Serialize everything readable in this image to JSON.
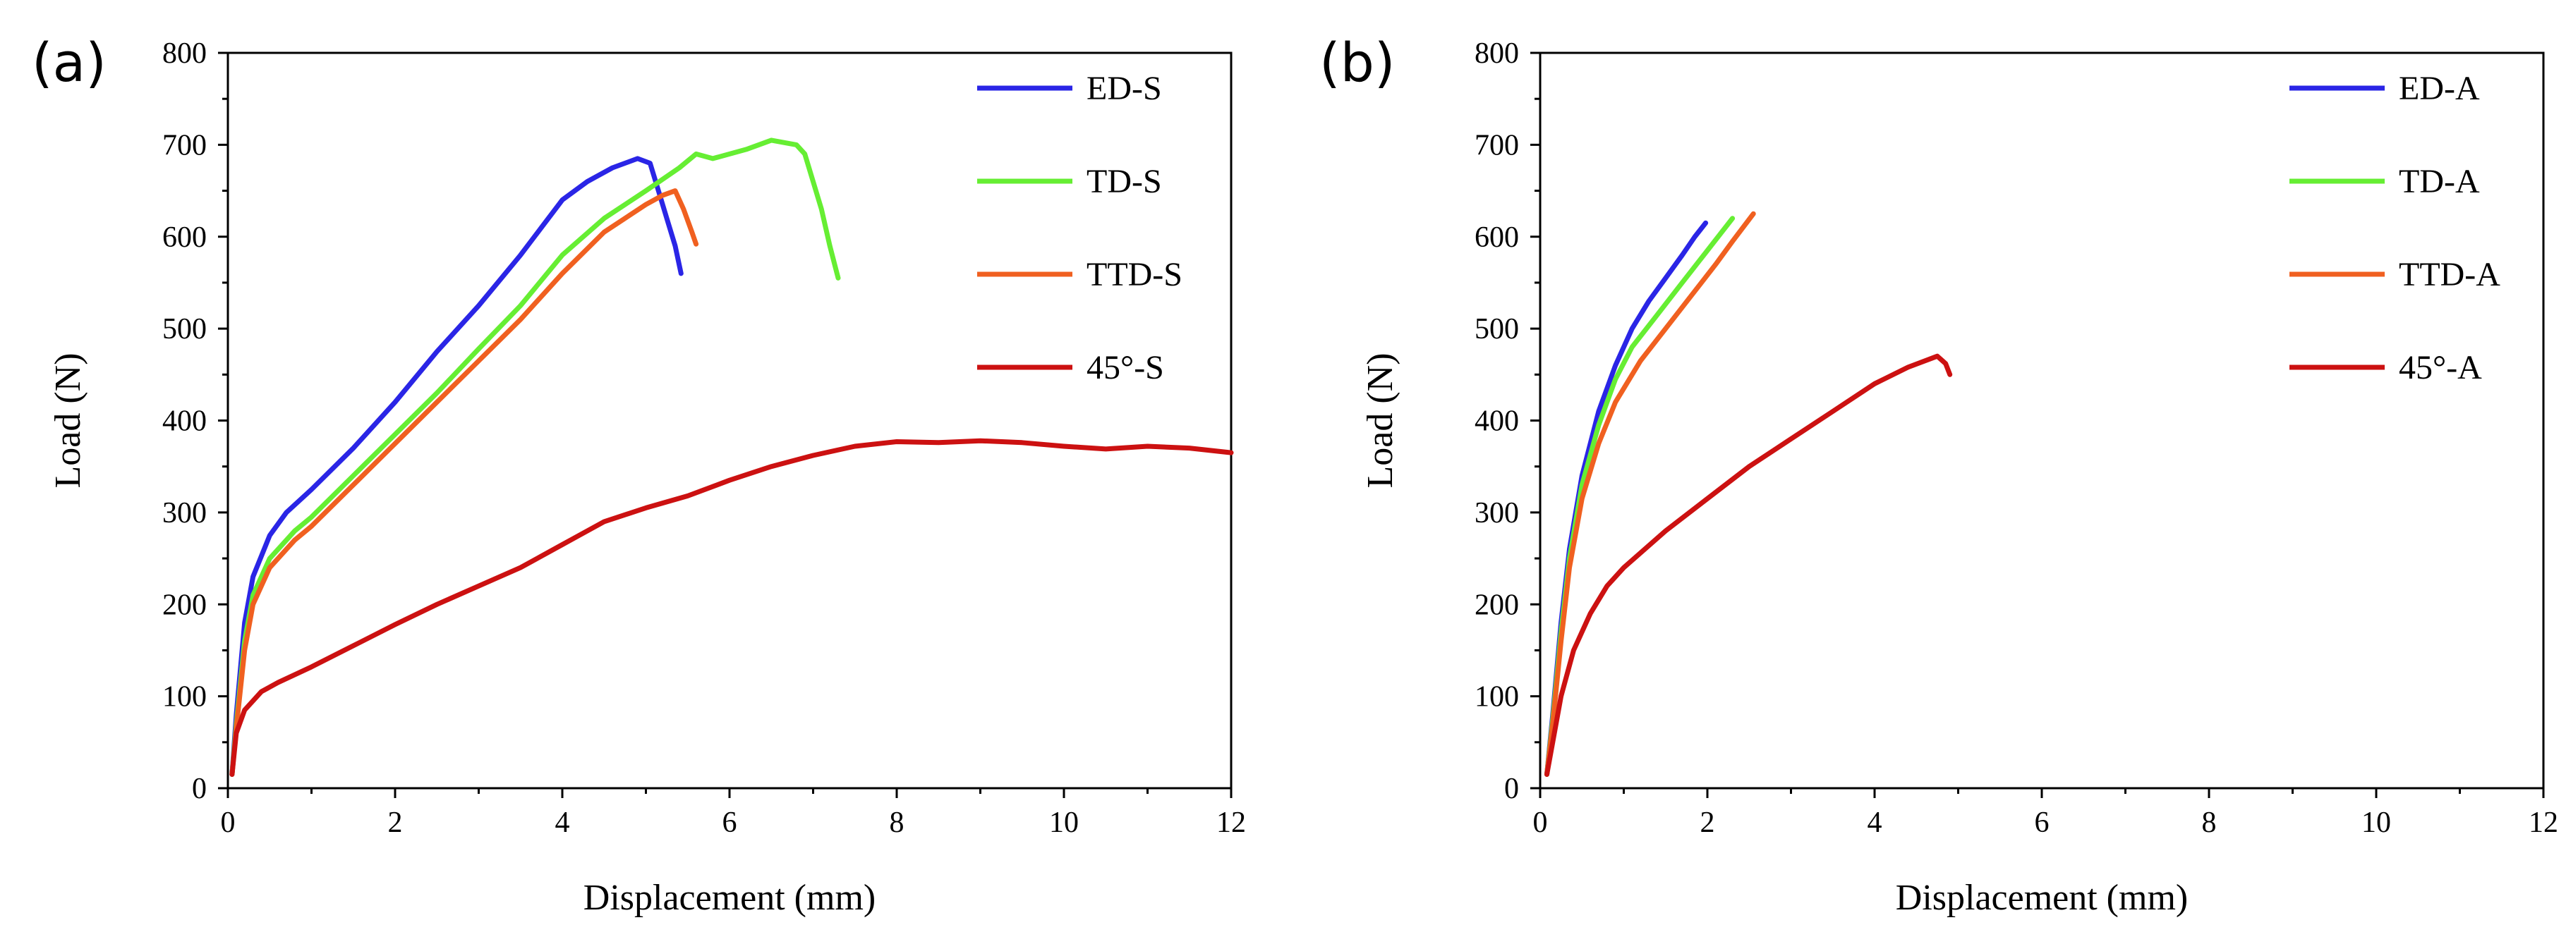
{
  "chart_data": [
    {
      "type": "line",
      "panel_label": "(a)",
      "xlabel": "Displacement (mm)",
      "ylabel": "Load (N)",
      "xlim": [
        0,
        12
      ],
      "ylim": [
        0,
        800
      ],
      "xticks": [
        0,
        2,
        4,
        6,
        8,
        10,
        12
      ],
      "yticks": [
        0,
        100,
        200,
        300,
        400,
        500,
        600,
        700,
        800
      ],
      "legend_position": "top-right",
      "series": [
        {
          "name": "ED-S",
          "color": "#2a25e6",
          "points": [
            [
              0.05,
              15
            ],
            [
              0.1,
              80
            ],
            [
              0.2,
              180
            ],
            [
              0.3,
              230
            ],
            [
              0.5,
              275
            ],
            [
              0.7,
              300
            ],
            [
              1.0,
              325
            ],
            [
              1.5,
              370
            ],
            [
              2.0,
              420
            ],
            [
              2.5,
              475
            ],
            [
              3.0,
              525
            ],
            [
              3.5,
              580
            ],
            [
              4.0,
              640
            ],
            [
              4.3,
              660
            ],
            [
              4.6,
              675
            ],
            [
              4.9,
              685
            ],
            [
              5.05,
              680
            ],
            [
              5.15,
              650
            ],
            [
              5.25,
              620
            ],
            [
              5.35,
              590
            ],
            [
              5.42,
              560
            ]
          ]
        },
        {
          "name": "TD-S",
          "color": "#66ee33",
          "points": [
            [
              0.05,
              15
            ],
            [
              0.1,
              70
            ],
            [
              0.2,
              160
            ],
            [
              0.3,
              210
            ],
            [
              0.5,
              250
            ],
            [
              0.8,
              280
            ],
            [
              1.0,
              295
            ],
            [
              1.5,
              340
            ],
            [
              2.0,
              385
            ],
            [
              2.5,
              430
            ],
            [
              3.0,
              478
            ],
            [
              3.5,
              525
            ],
            [
              4.0,
              580
            ],
            [
              4.5,
              620
            ],
            [
              5.0,
              650
            ],
            [
              5.4,
              675
            ],
            [
              5.6,
              690
            ],
            [
              5.8,
              685
            ],
            [
              6.2,
              695
            ],
            [
              6.5,
              705
            ],
            [
              6.8,
              700
            ],
            [
              6.9,
              690
            ],
            [
              7.0,
              660
            ],
            [
              7.1,
              630
            ],
            [
              7.2,
              590
            ],
            [
              7.3,
              555
            ]
          ]
        },
        {
          "name": "TTD-S",
          "color": "#f06020",
          "points": [
            [
              0.05,
              15
            ],
            [
              0.1,
              65
            ],
            [
              0.2,
              150
            ],
            [
              0.3,
              200
            ],
            [
              0.5,
              240
            ],
            [
              0.8,
              270
            ],
            [
              1.0,
              285
            ],
            [
              1.5,
              330
            ],
            [
              2.0,
              375
            ],
            [
              2.5,
              420
            ],
            [
              3.0,
              465
            ],
            [
              3.5,
              510
            ],
            [
              4.0,
              560
            ],
            [
              4.5,
              605
            ],
            [
              5.0,
              635
            ],
            [
              5.2,
              645
            ],
            [
              5.35,
              650
            ],
            [
              5.45,
              630
            ],
            [
              5.55,
              605
            ],
            [
              5.6,
              592
            ]
          ]
        },
        {
          "name": "45°-S",
          "color": "#cc1111",
          "points": [
            [
              0.05,
              15
            ],
            [
              0.1,
              60
            ],
            [
              0.2,
              85
            ],
            [
              0.4,
              105
            ],
            [
              0.6,
              115
            ],
            [
              1.0,
              132
            ],
            [
              1.5,
              155
            ],
            [
              2.0,
              178
            ],
            [
              2.5,
              200
            ],
            [
              3.0,
              220
            ],
            [
              3.5,
              240
            ],
            [
              4.0,
              265
            ],
            [
              4.5,
              290
            ],
            [
              5.0,
              305
            ],
            [
              5.5,
              318
            ],
            [
              6.0,
              335
            ],
            [
              6.5,
              350
            ],
            [
              7.0,
              362
            ],
            [
              7.5,
              372
            ],
            [
              8.0,
              377
            ],
            [
              8.5,
              376
            ],
            [
              9.0,
              378
            ],
            [
              9.5,
              376
            ],
            [
              10.0,
              372
            ],
            [
              10.5,
              369
            ],
            [
              11.0,
              372
            ],
            [
              11.5,
              370
            ],
            [
              12.0,
              365
            ]
          ]
        }
      ]
    },
    {
      "type": "line",
      "panel_label": "(b)",
      "xlabel": "Displacement (mm)",
      "ylabel": "Load (N)",
      "xlim": [
        0,
        12
      ],
      "ylim": [
        0,
        800
      ],
      "xticks": [
        0,
        2,
        4,
        6,
        8,
        10,
        12
      ],
      "yticks": [
        0,
        100,
        200,
        300,
        400,
        500,
        600,
        700,
        800
      ],
      "legend_position": "top-right",
      "series": [
        {
          "name": "ED-A",
          "color": "#2a25e6",
          "points": [
            [
              0.08,
              15
            ],
            [
              0.15,
              80
            ],
            [
              0.25,
              180
            ],
            [
              0.35,
              260
            ],
            [
              0.5,
              340
            ],
            [
              0.7,
              410
            ],
            [
              0.9,
              460
            ],
            [
              1.1,
              500
            ],
            [
              1.3,
              530
            ],
            [
              1.5,
              555
            ],
            [
              1.7,
              580
            ],
            [
              1.85,
              600
            ],
            [
              1.98,
              615
            ]
          ]
        },
        {
          "name": "TD-A",
          "color": "#66ee33",
          "points": [
            [
              0.08,
              15
            ],
            [
              0.15,
              75
            ],
            [
              0.25,
              170
            ],
            [
              0.35,
              250
            ],
            [
              0.5,
              330
            ],
            [
              0.7,
              395
            ],
            [
              0.9,
              445
            ],
            [
              1.1,
              480
            ],
            [
              1.4,
              515
            ],
            [
              1.7,
              550
            ],
            [
              2.0,
              585
            ],
            [
              2.3,
              620
            ]
          ]
        },
        {
          "name": "TTD-A",
          "color": "#f06020",
          "points": [
            [
              0.08,
              15
            ],
            [
              0.15,
              70
            ],
            [
              0.25,
              160
            ],
            [
              0.35,
              240
            ],
            [
              0.5,
              315
            ],
            [
              0.7,
              375
            ],
            [
              0.9,
              420
            ],
            [
              1.2,
              465
            ],
            [
              1.5,
              500
            ],
            [
              1.8,
              535
            ],
            [
              2.1,
              570
            ],
            [
              2.3,
              595
            ],
            [
              2.55,
              625
            ]
          ]
        },
        {
          "name": "45°-A",
          "color": "#cc1111",
          "points": [
            [
              0.08,
              15
            ],
            [
              0.15,
              50
            ],
            [
              0.25,
              100
            ],
            [
              0.4,
              150
            ],
            [
              0.6,
              190
            ],
            [
              0.8,
              220
            ],
            [
              1.0,
              240
            ],
            [
              1.5,
              280
            ],
            [
              2.0,
              315
            ],
            [
              2.5,
              350
            ],
            [
              3.0,
              380
            ],
            [
              3.5,
              410
            ],
            [
              4.0,
              440
            ],
            [
              4.4,
              458
            ],
            [
              4.75,
              470
            ],
            [
              4.85,
              462
            ],
            [
              4.9,
              450
            ]
          ]
        }
      ]
    }
  ]
}
